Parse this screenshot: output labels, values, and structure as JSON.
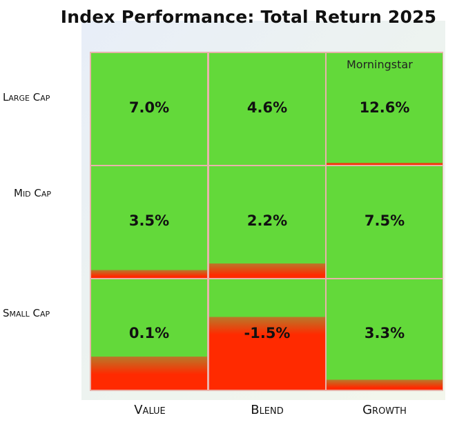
{
  "chart_data": {
    "type": "heatmap",
    "title": "Index Performance: Total Return 2025",
    "source": "Morningstar",
    "rows": [
      "Large Cap",
      "Mid Cap",
      "Small Cap"
    ],
    "columns": [
      "Value",
      "Blend",
      "Growth"
    ],
    "values": [
      [
        7.0,
        4.6,
        12.6
      ],
      [
        3.5,
        2.2,
        7.5
      ],
      [
        0.1,
        -1.5,
        3.3
      ]
    ],
    "labels": [
      [
        "7.0%",
        "4.6%",
        "12.6%"
      ],
      [
        "3.5%",
        "2.2%",
        "7.5%"
      ],
      [
        "0.1%",
        "-1.5%",
        "3.3%"
      ]
    ],
    "red_fill_fraction": [
      [
        0.0,
        0.0,
        0.02
      ],
      [
        0.07,
        0.13,
        0.0
      ],
      [
        0.3,
        0.66,
        0.09
      ]
    ],
    "colors": {
      "green": "#63d93a",
      "red": "#ff2a00",
      "blend": "#b87a2a",
      "gridline": "#e9b3ab"
    }
  }
}
